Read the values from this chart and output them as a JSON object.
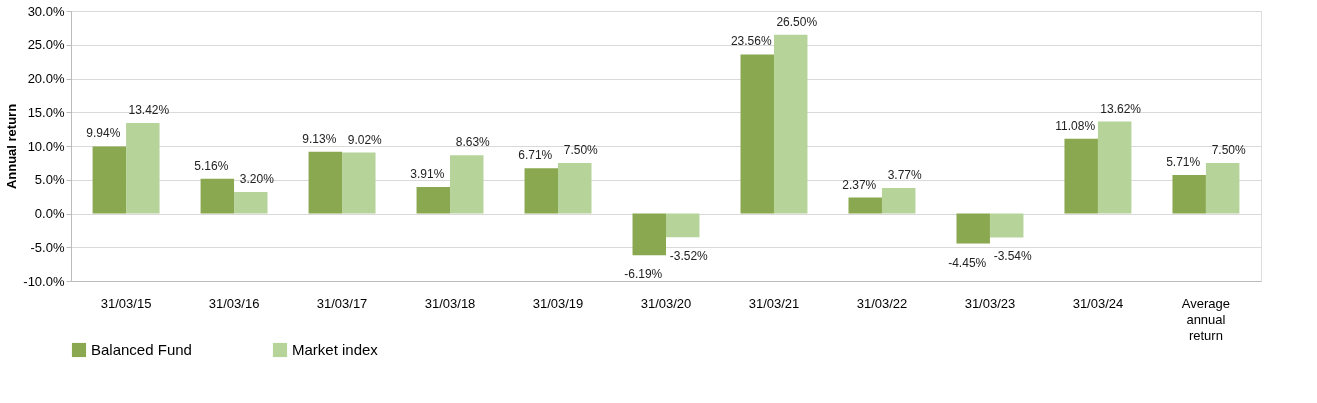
{
  "chart_data": {
    "type": "bar",
    "categories": [
      "31/03/15",
      "31/03/16",
      "31/03/17",
      "31/03/18",
      "31/03/19",
      "31/03/20",
      "31/03/21",
      "31/03/22",
      "31/03/23",
      "31/03/24",
      "Average annual return"
    ],
    "series": [
      {
        "name": "Balanced Fund",
        "color": "#8aa84f",
        "values": [
          9.94,
          5.16,
          9.13,
          3.91,
          6.71,
          -6.19,
          23.56,
          2.37,
          -4.45,
          11.08,
          5.71
        ],
        "value_labels": [
          "9.94%",
          "5.16%",
          "9.13%",
          "3.91%",
          "6.71%",
          "-6.19%",
          "23.56%",
          "2.37%",
          "-4.45%",
          "11.08%",
          "5.71%"
        ]
      },
      {
        "name": "Market index",
        "color": "#b6d39a",
        "values": [
          13.42,
          3.2,
          9.02,
          8.63,
          7.5,
          -3.52,
          26.5,
          3.77,
          -3.54,
          13.62,
          7.5
        ],
        "value_labels": [
          "13.42%",
          "3.20%",
          "9.02%",
          "8.63%",
          "7.50%",
          "-3.52%",
          "26.50%",
          "3.77%",
          "-3.54%",
          "13.62%",
          "7.50%"
        ]
      }
    ],
    "ylabel": "Annual return",
    "ylim": [
      -10,
      30
    ],
    "yticks": [
      {
        "value": -10,
        "label": "-10.0%"
      },
      {
        "value": -5,
        "label": "-5.0%"
      },
      {
        "value": 0,
        "label": "0.0%"
      },
      {
        "value": 5,
        "label": "5.0%"
      },
      {
        "value": 10,
        "label": "10.0%"
      },
      {
        "value": 15,
        "label": "15.0%"
      },
      {
        "value": 20,
        "label": "20.0%"
      },
      {
        "value": 25,
        "label": "25.0%"
      },
      {
        "value": 30,
        "label": "30.0%"
      }
    ],
    "grid": "y",
    "legend": "bottom"
  }
}
